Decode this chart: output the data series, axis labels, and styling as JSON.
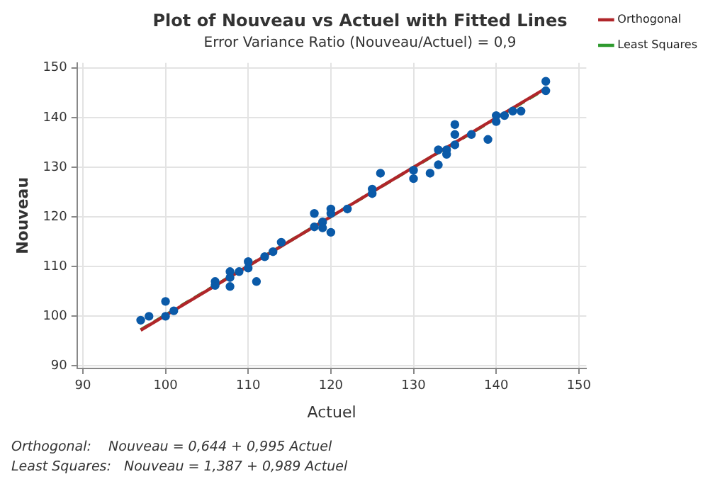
{
  "chart_data": {
    "type": "scatter",
    "title": "Plot of Nouveau vs Actuel with Fitted Lines",
    "subtitle": "Error Variance Ratio (Nouveau/Actuel) = 0,9",
    "xlabel": "Actuel",
    "ylabel": "Nouveau",
    "xlim": [
      89.3,
      150.9
    ],
    "ylim": [
      89.5,
      151
    ],
    "xticks": [
      90,
      100,
      110,
      120,
      130,
      140,
      150
    ],
    "yticks": [
      90,
      100,
      110,
      120,
      130,
      140,
      150
    ],
    "grid": true,
    "legend": "top right",
    "marker": "circle",
    "series": [
      {
        "type": "scatter",
        "color": "#0b5aa8",
        "x": [
          97,
          98,
          100,
          100,
          101,
          106,
          106,
          107.8,
          107.8,
          107.8,
          108.9,
          110,
          110,
          111,
          112,
          113,
          114,
          118,
          118,
          119,
          119,
          120,
          120,
          120,
          122,
          125,
          125,
          126,
          130,
          130,
          132,
          133,
          133,
          134,
          134,
          135,
          135,
          135,
          137,
          139,
          140,
          140,
          141,
          142,
          143,
          146,
          146
        ],
        "values": [
          99.2,
          100,
          103,
          100,
          101.1,
          107,
          106.2,
          109,
          107.8,
          106,
          109,
          111,
          109.7,
          107,
          112,
          113,
          114.9,
          120.7,
          118,
          119,
          117.8,
          121.6,
          120.7,
          116.9,
          121.6,
          125.6,
          124.7,
          128.8,
          129.4,
          127.7,
          128.8,
          130.5,
          133.5,
          133.5,
          132.6,
          134.5,
          136.6,
          138.6,
          136.6,
          135.6,
          140.4,
          139.2,
          140.4,
          141.3,
          141.3,
          145.4,
          147.3
        ]
      },
      {
        "type": "line",
        "name": "Orthogonal",
        "color": "#b0262a",
        "line_style": "solid",
        "marker": "none",
        "x": [
          97,
          146
        ],
        "values": [
          97.2,
          145.9
        ]
      },
      {
        "type": "line",
        "name": "Least Squares",
        "color": "#2e9a2e",
        "line_style": "dashed",
        "marker": "none",
        "x": [
          97,
          146
        ],
        "values": [
          97.3,
          145.8
        ]
      }
    ],
    "annotations": [
      "Orthogonal:    Nouveau = 0,644 + 0,995 Actuel",
      "Least Squares:   Nouveau = 1,387 + 0,989 Actuel"
    ]
  }
}
